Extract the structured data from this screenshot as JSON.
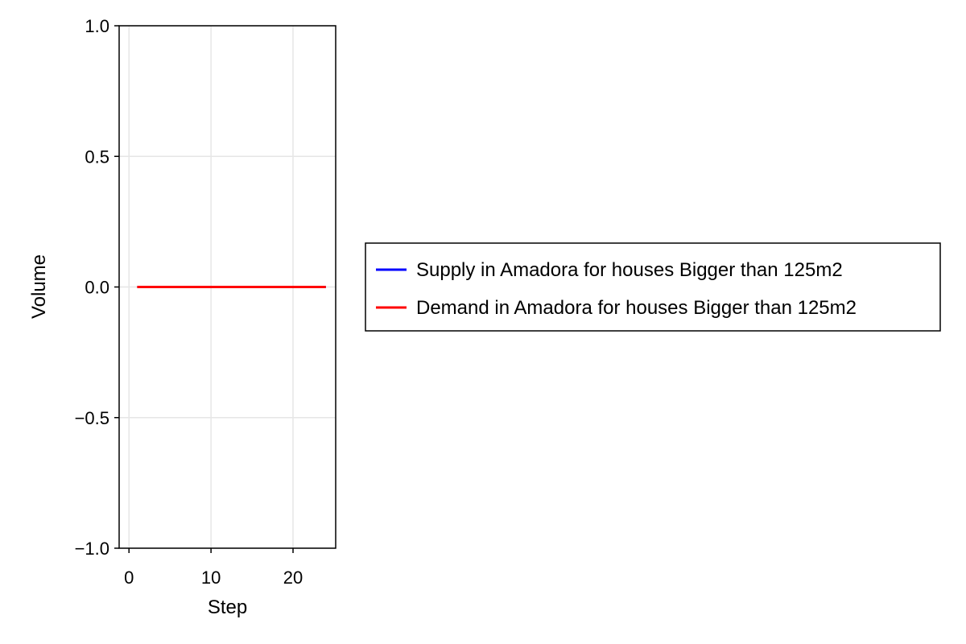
{
  "chart_data": {
    "type": "line",
    "title": "",
    "xlabel": "Step",
    "ylabel": "Volume",
    "xlim": [
      -1.2,
      25.2
    ],
    "ylim": [
      -1.0,
      1.0
    ],
    "xticks": [
      0,
      10,
      20
    ],
    "yticks": [
      -1.0,
      -0.5,
      0.0,
      0.5,
      1.0
    ],
    "xtick_labels": [
      "0",
      "10",
      "20"
    ],
    "ytick_labels": [
      "−1.0",
      "−0.5",
      "0.0",
      "0.5",
      "1.0"
    ],
    "grid": true,
    "legend_position": "right",
    "x": [
      1,
      2,
      3,
      4,
      5,
      6,
      7,
      8,
      9,
      10,
      11,
      12,
      13,
      14,
      15,
      16,
      17,
      18,
      19,
      20,
      21,
      22,
      23,
      24
    ],
    "series": [
      {
        "name": "Supply in Amadora for houses Bigger than 125m2",
        "color": "#0000ff",
        "values": [
          0,
          0,
          0,
          0,
          0,
          0,
          0,
          0,
          0,
          0,
          0,
          0,
          0,
          0,
          0,
          0,
          0,
          0,
          0,
          0,
          0,
          0,
          0,
          0
        ]
      },
      {
        "name": "Demand in Amadora for houses Bigger than 125m2",
        "color": "#ff0000",
        "values": [
          0,
          0,
          0,
          0,
          0,
          0,
          0,
          0,
          0,
          0,
          0,
          0,
          0,
          0,
          0,
          0,
          0,
          0,
          0,
          0,
          0,
          0,
          0,
          0
        ]
      }
    ]
  }
}
